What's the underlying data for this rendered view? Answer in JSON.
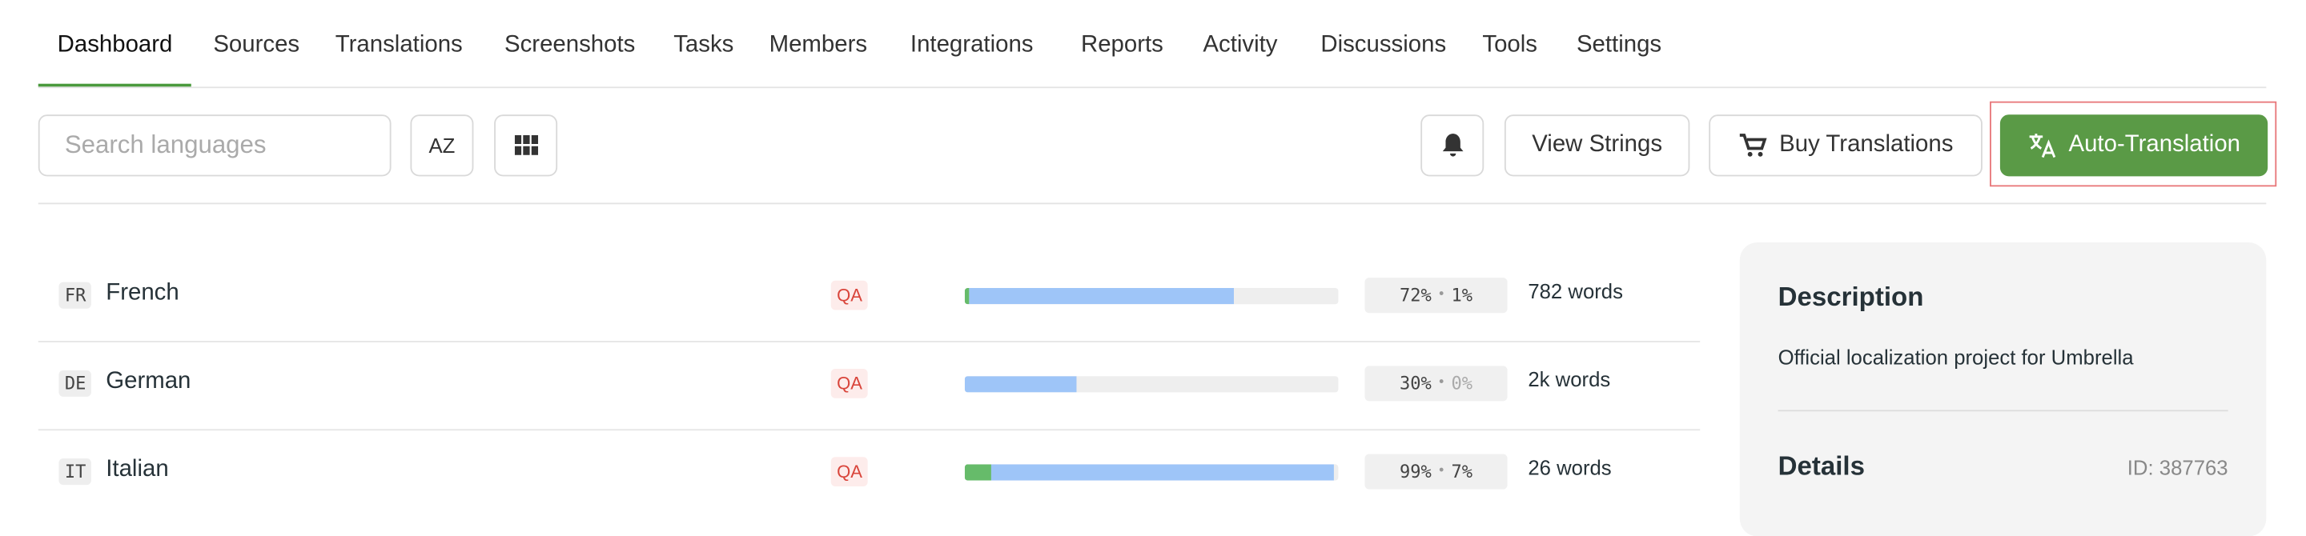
{
  "nav": {
    "tabs": [
      "Dashboard",
      "Sources",
      "Translations",
      "Screenshots",
      "Tasks",
      "Members",
      "Integrations",
      "Reports",
      "Activity",
      "Discussions",
      "Tools",
      "Settings"
    ]
  },
  "toolbar": {
    "search_placeholder": "Search languages",
    "sort_button": "AZ",
    "view_strings": "View Strings",
    "buy_translations": "Buy Translations",
    "auto_translation": "Auto-Translation"
  },
  "languages": [
    {
      "code": "FR",
      "name": "French",
      "qa": "QA",
      "translated": 72,
      "translated_label": "72%",
      "approved": 1,
      "approved_label": "1%",
      "words": "782 words"
    },
    {
      "code": "DE",
      "name": "German",
      "qa": "QA",
      "translated": 30,
      "translated_label": "30%",
      "approved": 0,
      "approved_label": "0%",
      "words": "2k words"
    },
    {
      "code": "IT",
      "name": "Italian",
      "qa": "QA",
      "translated": 99,
      "translated_label": "99%",
      "approved": 7,
      "approved_label": "7%",
      "words": "26 words"
    }
  ],
  "panel": {
    "description_title": "Description",
    "description": "Official localization project for Umbrella",
    "details_title": "Details",
    "id": "ID: 387763"
  }
}
